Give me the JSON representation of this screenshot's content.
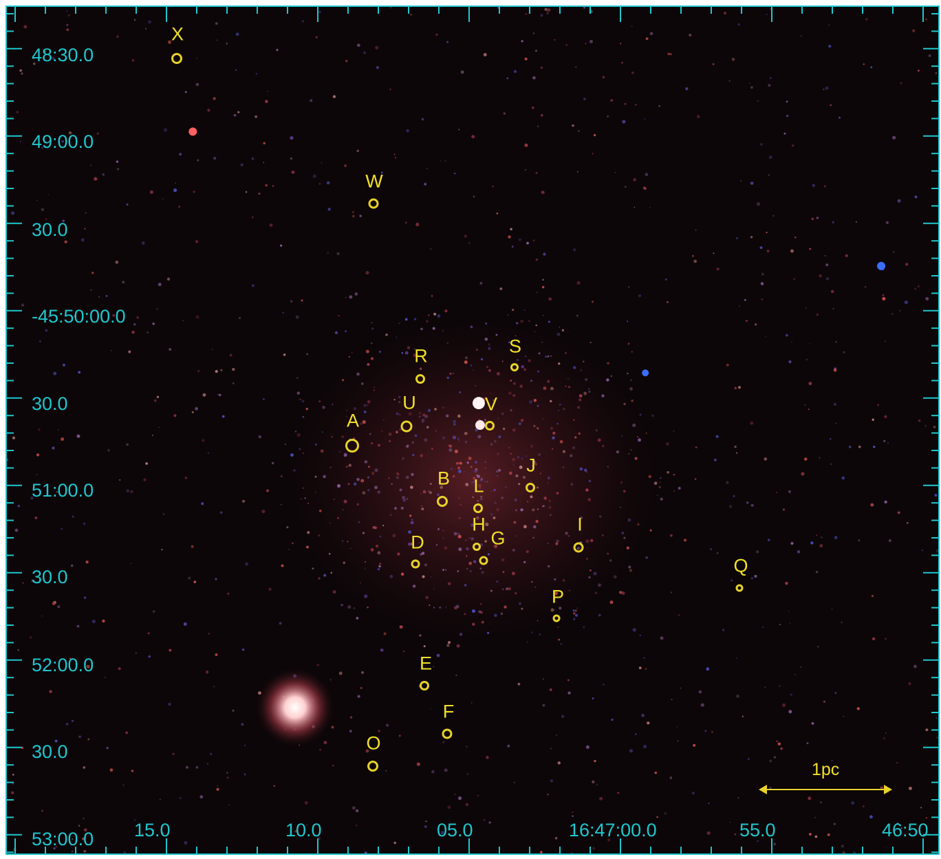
{
  "image": {
    "description_type": "false-color X-ray star cluster field",
    "colors": {
      "axis": "#1fc7cf",
      "marker": "#e8d22a",
      "background": "#0c0608"
    }
  },
  "axes": {
    "dec_labels": [
      "48:30.0",
      "49:00.0",
      "30.0",
      "-45:50:00.0",
      "30.0",
      "51:00.0",
      "30.0",
      "52:00.0",
      "30.0",
      "53:00.0"
    ],
    "ra_labels": [
      "15.0",
      "10.0",
      "05.0",
      "16:47:00.0",
      "55.0",
      "46:50"
    ]
  },
  "sources": [
    {
      "label": "X"
    },
    {
      "label": "W"
    },
    {
      "label": "S"
    },
    {
      "label": "R"
    },
    {
      "label": "U"
    },
    {
      "label": "V"
    },
    {
      "label": "A"
    },
    {
      "label": "J"
    },
    {
      "label": "B"
    },
    {
      "label": "L"
    },
    {
      "label": "H"
    },
    {
      "label": "G"
    },
    {
      "label": "I"
    },
    {
      "label": "D"
    },
    {
      "label": "Q"
    },
    {
      "label": "P"
    },
    {
      "label": "E"
    },
    {
      "label": "F"
    },
    {
      "label": "O"
    }
  ],
  "scale_bar": {
    "label": "1pc"
  }
}
